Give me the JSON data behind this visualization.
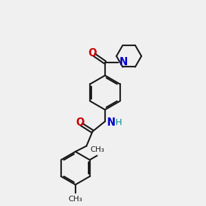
{
  "bg_color": "#f0f0f0",
  "bond_color": "#1a1a1a",
  "O_color": "#cc0000",
  "N_color": "#0000cc",
  "H_color": "#008b8b",
  "line_width": 1.6,
  "font_size": 9,
  "fig_size": [
    3.0,
    3.0
  ],
  "dpi": 100,
  "xlim": [
    0,
    10
  ],
  "ylim": [
    0,
    10
  ]
}
